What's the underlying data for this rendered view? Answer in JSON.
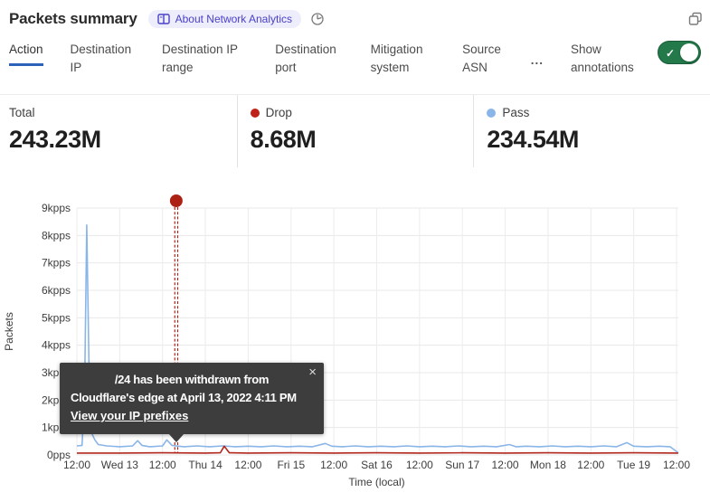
{
  "header": {
    "title": "Packets summary",
    "badge_label": "About Network Analytics"
  },
  "tabs": {
    "items": [
      {
        "label": "Action",
        "active": true
      },
      {
        "label": "Destination IP",
        "active": false
      },
      {
        "label": "Destination IP range",
        "active": false
      },
      {
        "label": "Destination port",
        "active": false
      },
      {
        "label": "Mitigation system",
        "active": false
      },
      {
        "label": "Source ASN",
        "active": false
      },
      {
        "label": "...",
        "active": false
      }
    ],
    "show_annotations_label": "Show annotations",
    "show_annotations_on": true
  },
  "stats": [
    {
      "label": "Total",
      "value": "243.23M"
    },
    {
      "label": "Drop",
      "value": "8.68M",
      "dot_color": "#bf2218"
    },
    {
      "label": "Pass",
      "value": "234.54M",
      "dot_color": "#8ab5e8"
    }
  ],
  "tooltip": {
    "line1": "/24 has been withdrawn from",
    "line2": "Cloudflare's edge at April 13, 2022 4:11 PM",
    "link": "View your IP prefixes",
    "close": "×"
  },
  "colors": {
    "active_tab_underline": "#2c63b8",
    "toggle_green": "#23794a",
    "badge_text": "#4a41c8",
    "badge_bg": "#eeedfc",
    "tooltip_bg": "#3d3d3d"
  },
  "chart_data": {
    "type": "line",
    "x_axis_label": "Time (local)",
    "y_axis_label": "Packets",
    "x_ticks": [
      "12:00",
      "Wed 13",
      "12:00",
      "Thu 14",
      "12:00",
      "Fri 15",
      "12:00",
      "Sat 16",
      "12:00",
      "Sun 17",
      "12:00",
      "Mon 18",
      "12:00",
      "Tue 19",
      "12:00"
    ],
    "x_tick_note": "one tick = 12 hours, April 12-19 2022",
    "y_ticks": [
      "0pps",
      "1kpps",
      "2kpps",
      "3kpps",
      "4kpps",
      "5kpps",
      "6kpps",
      "7kpps",
      "8kpps",
      "9kpps"
    ],
    "ylim": [
      0,
      9
    ],
    "xlim": [
      0,
      14.04
    ],
    "grid": true,
    "series": [
      {
        "name": "Pass",
        "color": "#8ab5e8",
        "unit": "kpps",
        "points": [
          [
            0,
            0.33
          ],
          [
            0.12,
            0.35
          ],
          [
            0.18,
            2.2
          ],
          [
            0.23,
            8.38
          ],
          [
            0.3,
            1.6
          ],
          [
            0.36,
            0.75
          ],
          [
            0.42,
            0.55
          ],
          [
            0.5,
            0.38
          ],
          [
            0.7,
            0.33
          ],
          [
            1.0,
            0.3
          ],
          [
            1.3,
            0.33
          ],
          [
            1.42,
            0.52
          ],
          [
            1.52,
            0.35
          ],
          [
            1.7,
            0.3
          ],
          [
            2.0,
            0.33
          ],
          [
            2.1,
            0.55
          ],
          [
            2.22,
            0.35
          ],
          [
            2.5,
            0.3
          ],
          [
            2.8,
            0.33
          ],
          [
            3.1,
            0.3
          ],
          [
            3.4,
            0.33
          ],
          [
            3.7,
            0.3
          ],
          [
            4.0,
            0.32
          ],
          [
            4.3,
            0.3
          ],
          [
            4.6,
            0.33
          ],
          [
            4.9,
            0.3
          ],
          [
            5.2,
            0.32
          ],
          [
            5.5,
            0.3
          ],
          [
            5.8,
            0.42
          ],
          [
            5.95,
            0.32
          ],
          [
            6.2,
            0.3
          ],
          [
            6.5,
            0.33
          ],
          [
            6.8,
            0.3
          ],
          [
            7.1,
            0.32
          ],
          [
            7.4,
            0.3
          ],
          [
            7.7,
            0.33
          ],
          [
            8.0,
            0.3
          ],
          [
            8.3,
            0.32
          ],
          [
            8.6,
            0.3
          ],
          [
            8.9,
            0.33
          ],
          [
            9.2,
            0.3
          ],
          [
            9.5,
            0.32
          ],
          [
            9.8,
            0.3
          ],
          [
            10.1,
            0.38
          ],
          [
            10.25,
            0.3
          ],
          [
            10.5,
            0.32
          ],
          [
            10.8,
            0.3
          ],
          [
            11.1,
            0.33
          ],
          [
            11.4,
            0.3
          ],
          [
            11.7,
            0.32
          ],
          [
            12.0,
            0.3
          ],
          [
            12.3,
            0.33
          ],
          [
            12.6,
            0.3
          ],
          [
            12.84,
            0.45
          ],
          [
            13.0,
            0.32
          ],
          [
            13.3,
            0.3
          ],
          [
            13.6,
            0.32
          ],
          [
            13.85,
            0.3
          ],
          [
            14.04,
            0.08
          ]
        ]
      },
      {
        "name": "Drop",
        "color": "#b2271d",
        "unit": "kpps",
        "points": [
          [
            0,
            0.07
          ],
          [
            1,
            0.07
          ],
          [
            2,
            0.08
          ],
          [
            3,
            0.07
          ],
          [
            3.35,
            0.08
          ],
          [
            3.44,
            0.32
          ],
          [
            3.56,
            0.08
          ],
          [
            4,
            0.07
          ],
          [
            5,
            0.08
          ],
          [
            6,
            0.07
          ],
          [
            7,
            0.08
          ],
          [
            8,
            0.07
          ],
          [
            9,
            0.08
          ],
          [
            10,
            0.07
          ],
          [
            11,
            0.08
          ],
          [
            12,
            0.07
          ],
          [
            13,
            0.08
          ],
          [
            14.04,
            0.07
          ]
        ]
      }
    ],
    "annotation": {
      "x": 2.32,
      "dot_color": "#ad2014",
      "line_color": "#a7251b",
      "label": "/24 has been withdrawn from Cloudflare's edge at April 13, 2022 4:11 PM"
    }
  }
}
